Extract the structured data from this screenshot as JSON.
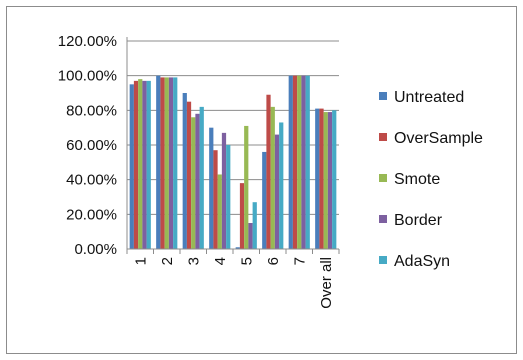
{
  "chart_data": {
    "type": "bar",
    "title": "",
    "xlabel": "",
    "ylabel": "",
    "categories": [
      "1",
      "2",
      "3",
      "4",
      "5",
      "6",
      "7",
      "Over all"
    ],
    "series": [
      {
        "name": "Untreated",
        "color": "#4a7ebb",
        "values": [
          0.95,
          1.0,
          0.9,
          0.7,
          0.01,
          0.56,
          1.0,
          0.81
        ]
      },
      {
        "name": "OverSample",
        "color": "#be4b48",
        "values": [
          0.97,
          0.99,
          0.85,
          0.57,
          0.38,
          0.89,
          1.0,
          0.81
        ]
      },
      {
        "name": "Smote",
        "color": "#98b954",
        "values": [
          0.98,
          0.99,
          0.76,
          0.43,
          0.71,
          0.82,
          1.0,
          0.79
        ]
      },
      {
        "name": "Border",
        "color": "#7d60a0",
        "values": [
          0.97,
          0.99,
          0.78,
          0.67,
          0.15,
          0.66,
          1.0,
          0.79
        ]
      },
      {
        "name": "AdaSyn",
        "color": "#46aac5",
        "values": [
          0.97,
          0.99,
          0.82,
          0.6,
          0.27,
          0.73,
          1.0,
          0.8
        ]
      }
    ],
    "yticks": [
      "0.00%",
      "20.00%",
      "40.00%",
      "60.00%",
      "80.00%",
      "100.00%",
      "120.00%"
    ],
    "ylim": [
      0,
      1.2
    ],
    "grid": true,
    "legend_position": "right"
  }
}
